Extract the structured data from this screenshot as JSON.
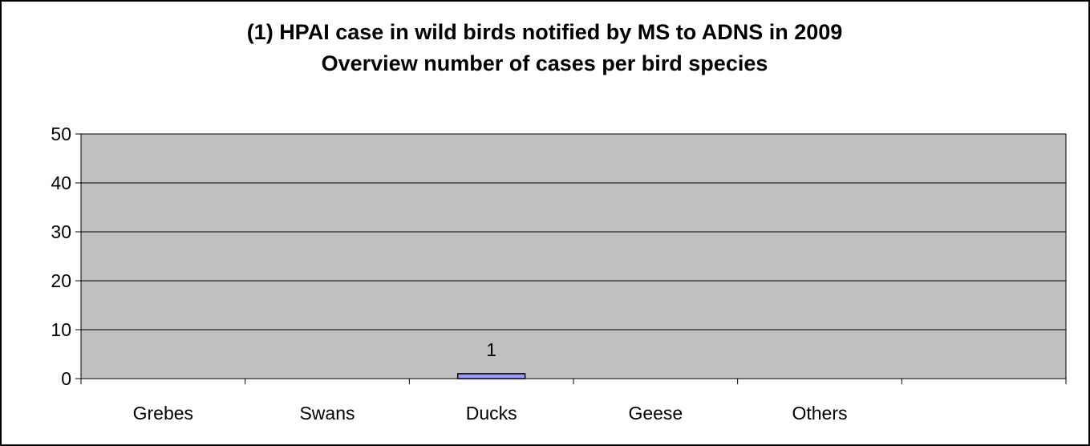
{
  "chart_data": {
    "type": "bar",
    "title": [
      "(1) HPAI case in wild birds notified by MS to ADNS in 2009",
      "Overview number of cases per bird species"
    ],
    "xlabel": "",
    "ylabel": "",
    "categories": [
      "Grebes",
      "Swans",
      "Ducks",
      "Geese",
      "Others",
      ""
    ],
    "values": [
      0,
      0,
      1,
      0,
      0,
      0
    ],
    "data_labels": [
      "",
      "",
      "1",
      "",
      "",
      ""
    ],
    "ylim": [
      0,
      50
    ],
    "yticks": [
      0,
      10,
      20,
      30,
      40,
      50
    ],
    "grid": true,
    "legend": "none",
    "colors": {
      "plot_background": "#c0c0c0",
      "bar_fill": "#9999ff",
      "bar_stroke": "#000000",
      "gridline": "#000000",
      "frame": "#000000"
    }
  }
}
